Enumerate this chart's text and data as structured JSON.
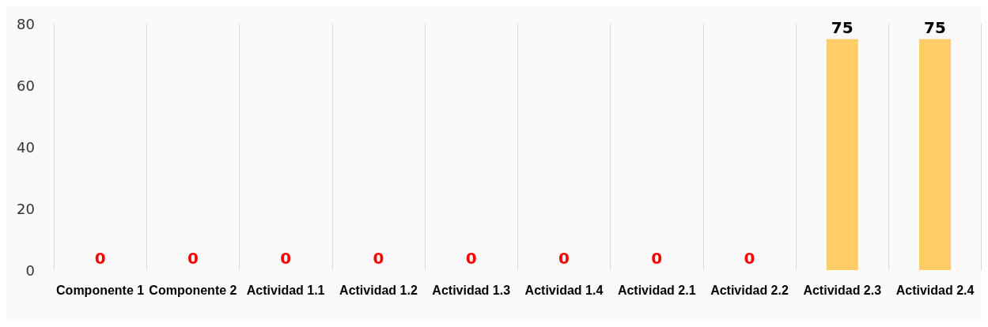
{
  "chart_data": {
    "type": "bar",
    "categories": [
      "Componente 1",
      "Componente 2",
      "Actividad 1.1",
      "Actividad 1.2",
      "Actividad 1.3",
      "Actividad 1.4",
      "Actividad 2.1",
      "Actividad 2.2",
      "Actividad 2.3",
      "Actividad 2.4"
    ],
    "values": [
      0,
      0,
      0,
      0,
      0,
      0,
      0,
      0,
      75,
      75
    ],
    "color": "#ffcc66",
    "ylim": [
      0,
      80
    ],
    "yticks": [
      0,
      20,
      40,
      60,
      80
    ],
    "grid": "x",
    "data_labels": true
  }
}
